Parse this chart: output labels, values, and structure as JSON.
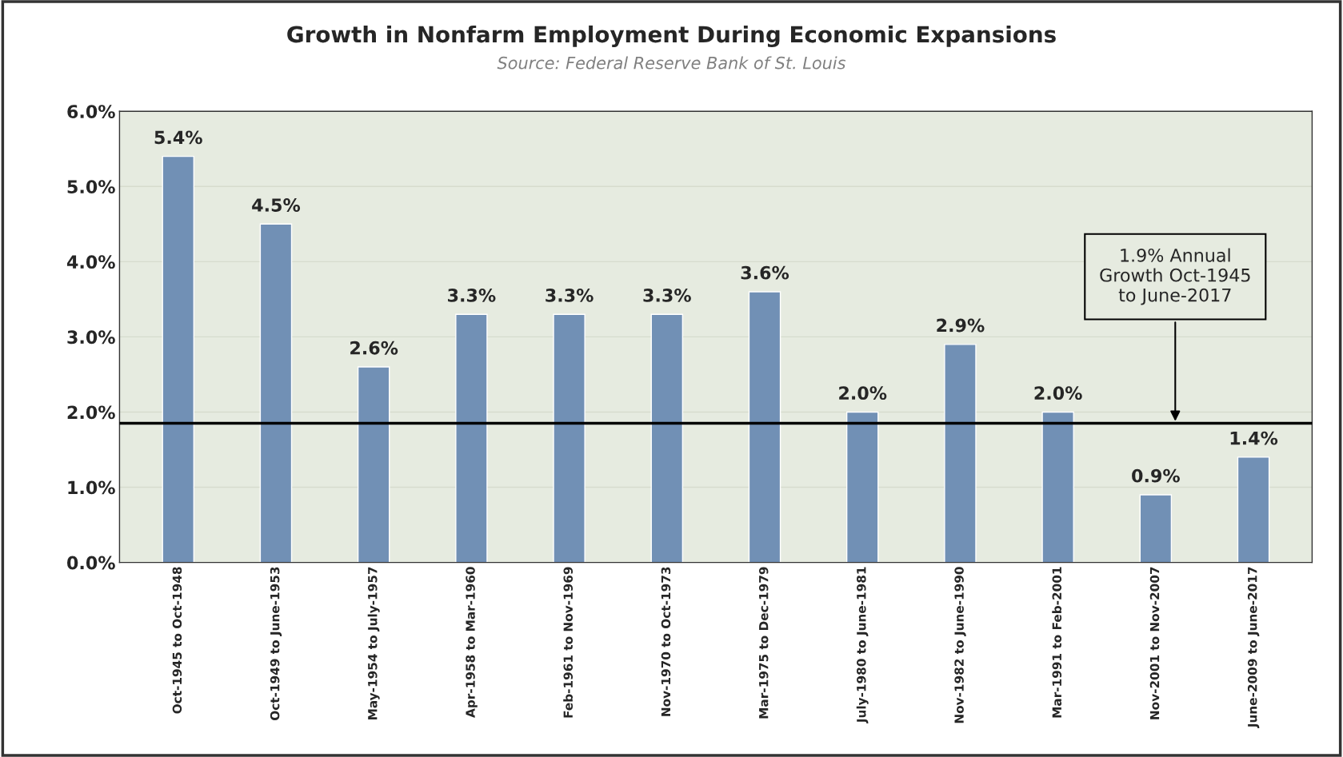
{
  "chart_data": {
    "type": "bar",
    "title": "Growth in Nonfarm Employment During Economic Expansions",
    "subtitle": "Source: Federal Reserve Bank of St. Louis",
    "categories": [
      "Oct-1945 to Oct-1948",
      "Oct-1949 to June-1953",
      "May-1954 to July-1957",
      "Apr-1958 to Mar-1960",
      "Feb-1961 to Nov-1969",
      "Nov-1970 to Oct-1973",
      "Mar-1975 to Dec-1979",
      "July-1980 to June-1981",
      "Nov-1982 to June-1990",
      "Mar-1991 to Feb-2001",
      "Nov-2001 to Nov-2007",
      "June-2009 to June-2017"
    ],
    "values": [
      5.4,
      4.5,
      2.6,
      3.3,
      3.3,
      3.3,
      3.6,
      2.0,
      2.9,
      2.0,
      0.9,
      1.4
    ],
    "value_labels": [
      "5.4%",
      "4.5%",
      "2.6%",
      "3.3%",
      "3.3%",
      "3.3%",
      "3.6%",
      "2.0%",
      "2.9%",
      "2.0%",
      "0.9%",
      "1.4%"
    ],
    "color": "#7190b5",
    "ylim": [
      0,
      6
    ],
    "yticks": [
      {
        "value": 0,
        "label": "0.0%"
      },
      {
        "value": 1,
        "label": "1.0%"
      },
      {
        "value": 2,
        "label": "2.0%"
      },
      {
        "value": 3,
        "label": "3.0%"
      },
      {
        "value": 4,
        "label": "4.0%"
      },
      {
        "value": 5,
        "label": "5.0%"
      },
      {
        "value": 6,
        "label": "6.0%"
      }
    ],
    "grid": "y",
    "ref_lines": [
      {
        "axis": "y",
        "value": 1.85,
        "label": "1.9% Annual\nGrowth Oct-1945\nto June-2017",
        "color": "#000000",
        "line_style": "solid"
      }
    ]
  }
}
